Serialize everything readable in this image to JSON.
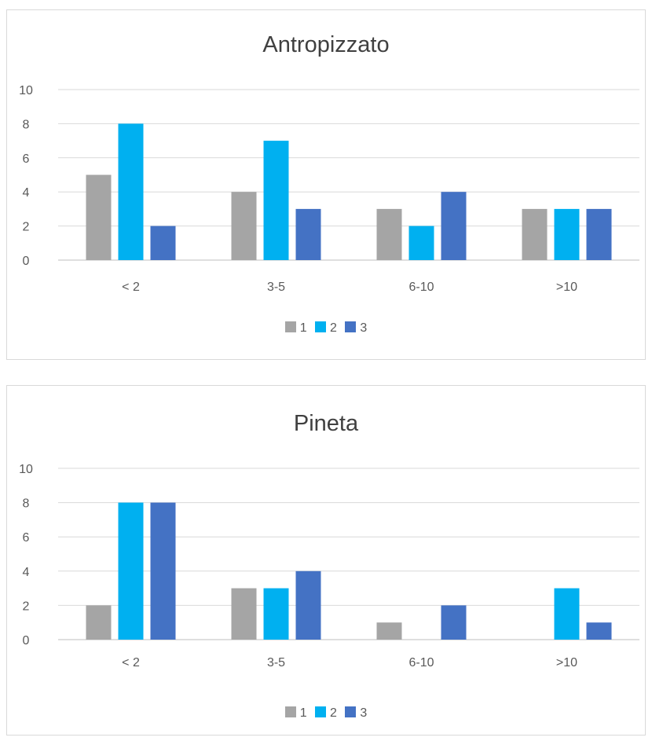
{
  "chart_data": [
    {
      "type": "bar",
      "title": "Antropizzato",
      "categories": [
        "< 2",
        "3-5",
        "6-10",
        ">10"
      ],
      "series": [
        {
          "name": "1",
          "values": [
            5,
            4,
            3,
            3
          ],
          "color": "#a5a5a5"
        },
        {
          "name": "2",
          "values": [
            8,
            7,
            2,
            3
          ],
          "color": "#00b0f0"
        },
        {
          "name": "3",
          "values": [
            2,
            3,
            4,
            3
          ],
          "color": "#4472c4"
        }
      ],
      "ylim": [
        0,
        10
      ],
      "yticks": [
        "0",
        "2",
        "4",
        "6",
        "8",
        "10"
      ],
      "grid": true,
      "legend": "bottom"
    },
    {
      "type": "bar",
      "title": "Pineta",
      "categories": [
        "< 2",
        "3-5",
        "6-10",
        ">10"
      ],
      "series": [
        {
          "name": "1",
          "values": [
            2,
            3,
            1,
            0
          ],
          "color": "#a5a5a5"
        },
        {
          "name": "2",
          "values": [
            8,
            3,
            0,
            3
          ],
          "color": "#00b0f0"
        },
        {
          "name": "3",
          "values": [
            8,
            4,
            2,
            1
          ],
          "color": "#4472c4"
        }
      ],
      "ylim": [
        0,
        10
      ],
      "yticks": [
        "0",
        "2",
        "4",
        "6",
        "8",
        "10"
      ],
      "grid": true,
      "legend": "bottom"
    }
  ]
}
